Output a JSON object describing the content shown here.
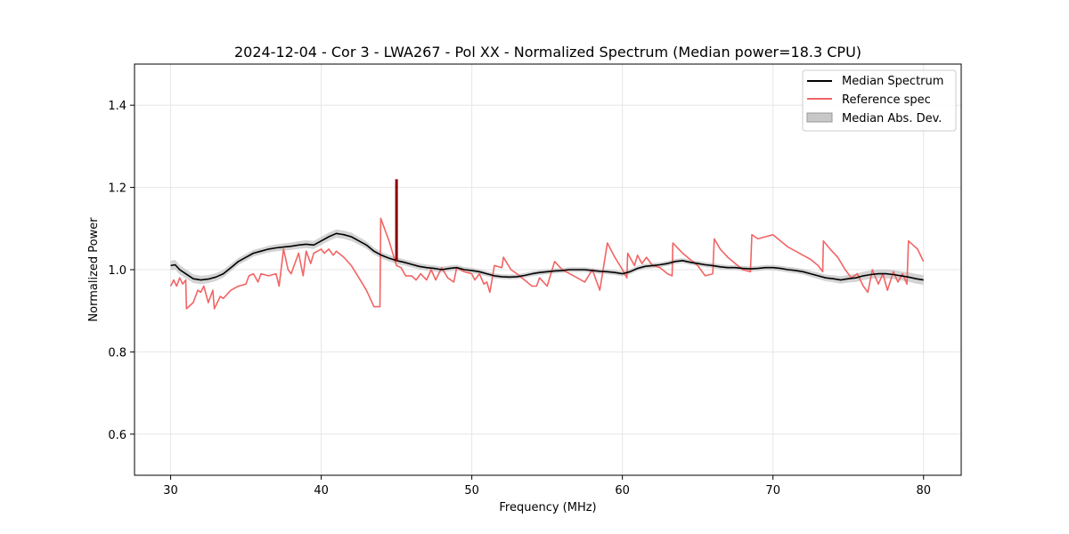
{
  "chart_data": {
    "type": "line",
    "title": "2024-12-04 - Cor 3 - LWA267 - Pol XX - Normalized Spectrum (Median power=18.3 CPU)",
    "xlabel": "Frequency (MHz)",
    "ylabel": "Normalized Power",
    "xlim": [
      27.6,
      82.5
    ],
    "ylim": [
      0.5,
      1.5
    ],
    "xticks": [
      30,
      40,
      50,
      60,
      70,
      80
    ],
    "yticks": [
      0.6,
      0.8,
      1.0,
      1.2,
      1.4
    ],
    "xtick_labels": [
      "30",
      "40",
      "50",
      "60",
      "70",
      "80"
    ],
    "ytick_labels": [
      "0.6",
      "0.8",
      "1.0",
      "1.2",
      "1.4"
    ],
    "grid": true,
    "legend_position": "top-right",
    "legend": [
      "Median Spectrum",
      "Reference spec",
      "Median Abs. Dev."
    ],
    "colors": {
      "median": "#000000",
      "reference": "#f26464",
      "mad_fill": "#c8c8c8",
      "mad_edge": "#999999",
      "spike": "#8b0000",
      "grid": "#e6e6e6"
    },
    "series": [
      {
        "name": "Median Spectrum",
        "x": [
          30.0,
          30.3,
          30.6,
          31.0,
          31.5,
          32.0,
          32.5,
          33.0,
          33.5,
          34.0,
          34.5,
          35.0,
          35.5,
          36.0,
          36.5,
          37.0,
          37.5,
          38.0,
          38.5,
          39.0,
          39.5,
          40.0,
          40.5,
          41.0,
          41.5,
          42.0,
          42.5,
          43.0,
          43.5,
          44.0,
          44.5,
          45.0,
          45.5,
          46.0,
          46.5,
          47.0,
          47.5,
          48.0,
          48.5,
          49.0,
          49.5,
          50.0,
          50.5,
          51.0,
          51.5,
          52.0,
          52.5,
          53.0,
          53.5,
          54.0,
          54.5,
          55.0,
          55.5,
          56.0,
          56.5,
          57.0,
          57.5,
          58.0,
          58.5,
          59.0,
          59.5,
          60.0,
          60.5,
          61.0,
          61.5,
          62.0,
          62.5,
          63.0,
          63.5,
          64.0,
          64.5,
          65.0,
          65.5,
          66.0,
          66.5,
          67.0,
          67.5,
          68.0,
          68.5,
          69.0,
          69.5,
          70.0,
          70.5,
          71.0,
          71.5,
          72.0,
          72.5,
          73.0,
          73.5,
          74.0,
          74.5,
          75.0,
          75.5,
          76.0,
          76.5,
          77.0,
          77.5,
          78.0,
          78.5,
          79.0,
          79.5,
          80.0
        ],
        "values": [
          1.01,
          1.012,
          1.0,
          0.99,
          0.978,
          0.975,
          0.977,
          0.982,
          0.99,
          1.005,
          1.02,
          1.03,
          1.04,
          1.045,
          1.05,
          1.053,
          1.055,
          1.057,
          1.06,
          1.062,
          1.06,
          1.07,
          1.08,
          1.088,
          1.085,
          1.08,
          1.07,
          1.06,
          1.045,
          1.035,
          1.028,
          1.022,
          1.018,
          1.013,
          1.008,
          1.005,
          1.003,
          1.0,
          1.003,
          1.005,
          1.0,
          0.998,
          0.995,
          0.99,
          0.985,
          0.983,
          0.982,
          0.983,
          0.986,
          0.99,
          0.993,
          0.995,
          0.997,
          0.998,
          1.0,
          1.0,
          1.0,
          0.998,
          0.996,
          0.995,
          0.993,
          0.99,
          0.995,
          1.003,
          1.008,
          1.01,
          1.012,
          1.015,
          1.02,
          1.022,
          1.018,
          1.015,
          1.012,
          1.01,
          1.007,
          1.005,
          1.005,
          1.003,
          1.002,
          1.003,
          1.005,
          1.005,
          1.003,
          1.0,
          0.998,
          0.995,
          0.99,
          0.985,
          0.98,
          0.978,
          0.975,
          0.978,
          0.98,
          0.985,
          0.988,
          0.99,
          0.99,
          0.988,
          0.985,
          0.982,
          0.978,
          0.975
        ]
      },
      {
        "name": "Reference spec",
        "x": [
          30.0,
          30.2,
          30.4,
          30.6,
          30.8,
          31.0,
          31.05,
          31.5,
          31.8,
          32.0,
          32.2,
          32.5,
          32.8,
          32.9,
          33.3,
          33.5,
          34.0,
          34.5,
          35.0,
          35.2,
          35.5,
          35.8,
          36.0,
          36.5,
          37.0,
          37.2,
          37.5,
          37.8,
          38.0,
          38.5,
          38.8,
          39.0,
          39.3,
          39.5,
          40.0,
          40.2,
          40.5,
          40.8,
          41.0,
          41.5,
          42.0,
          42.5,
          43.0,
          43.5,
          43.9,
          43.95,
          44.5,
          45.0,
          45.3,
          45.6,
          46.0,
          46.3,
          46.6,
          47.0,
          47.3,
          47.6,
          48.0,
          48.4,
          48.8,
          49.0,
          49.5,
          50.0,
          50.2,
          50.5,
          50.8,
          51.0,
          51.2,
          51.5,
          52.0,
          52.1,
          52.6,
          53.0,
          53.5,
          54.0,
          54.3,
          54.5,
          55.0,
          55.5,
          56.0,
          56.5,
          57.0,
          57.5,
          58.0,
          58.5,
          59.0,
          59.5,
          60.0,
          60.3,
          60.35,
          60.8,
          61.0,
          61.3,
          61.6,
          62.0,
          62.5,
          63.0,
          63.3,
          63.35,
          64.0,
          64.5,
          65.0,
          65.5,
          66.0,
          66.1,
          66.5,
          67.0,
          67.5,
          68.0,
          68.5,
          68.6,
          69.0,
          69.5,
          70.0,
          70.5,
          71.0,
          71.5,
          72.0,
          72.5,
          73.0,
          73.3,
          73.35,
          73.8,
          74.3,
          74.8,
          75.2,
          75.6,
          76.0,
          76.3,
          76.6,
          77.0,
          77.3,
          77.6,
          78.0,
          78.3,
          78.6,
          78.9,
          79.0,
          79.3,
          79.6,
          80.0
        ],
        "values": [
          0.96,
          0.975,
          0.96,
          0.98,
          0.965,
          0.975,
          0.905,
          0.92,
          0.95,
          0.945,
          0.96,
          0.92,
          0.95,
          0.905,
          0.935,
          0.93,
          0.95,
          0.96,
          0.965,
          0.985,
          0.99,
          0.97,
          0.99,
          0.985,
          0.99,
          0.96,
          1.05,
          1.0,
          0.99,
          1.04,
          0.985,
          1.045,
          1.015,
          1.04,
          1.05,
          1.04,
          1.05,
          1.035,
          1.045,
          1.03,
          1.01,
          0.98,
          0.95,
          0.91,
          0.91,
          1.125,
          1.07,
          1.01,
          1.005,
          0.985,
          0.985,
          0.975,
          0.99,
          0.975,
          1.0,
          0.975,
          1.005,
          0.98,
          0.97,
          1.005,
          0.995,
          0.99,
          0.975,
          0.99,
          0.965,
          0.97,
          0.945,
          1.01,
          1.005,
          1.03,
          1.0,
          0.99,
          0.975,
          0.96,
          0.96,
          0.98,
          0.96,
          1.02,
          1.0,
          0.99,
          0.98,
          0.97,
          1.0,
          0.95,
          1.065,
          1.03,
          1.0,
          0.98,
          1.04,
          1.01,
          1.035,
          1.015,
          1.03,
          1.01,
          1.005,
          0.99,
          0.985,
          1.065,
          1.04,
          1.025,
          1.01,
          0.985,
          0.99,
          1.075,
          1.05,
          1.03,
          1.015,
          1.0,
          0.995,
          1.085,
          1.075,
          1.08,
          1.085,
          1.07,
          1.055,
          1.045,
          1.035,
          1.025,
          1.01,
          0.995,
          1.07,
          1.05,
          1.03,
          1.0,
          0.98,
          0.99,
          0.96,
          0.945,
          1.0,
          0.965,
          0.99,
          0.95,
          0.995,
          0.97,
          0.99,
          0.965,
          1.07,
          1.06,
          1.05,
          1.02
        ]
      },
      {
        "name": "Median Abs. Dev.",
        "x": [
          30.0,
          32.0,
          36.0,
          40.0,
          42.0,
          44.0,
          48.0,
          52.0,
          56.0,
          60.0,
          64.0,
          68.0,
          72.0,
          76.0,
          80.0
        ],
        "values": [
          0.012,
          0.01,
          0.008,
          0.01,
          0.01,
          0.008,
          0.007,
          0.006,
          0.006,
          0.006,
          0.006,
          0.006,
          0.007,
          0.01,
          0.012
        ]
      }
    ],
    "spike": {
      "x": 45.0,
      "values": [
        1.02,
        1.22
      ]
    }
  }
}
